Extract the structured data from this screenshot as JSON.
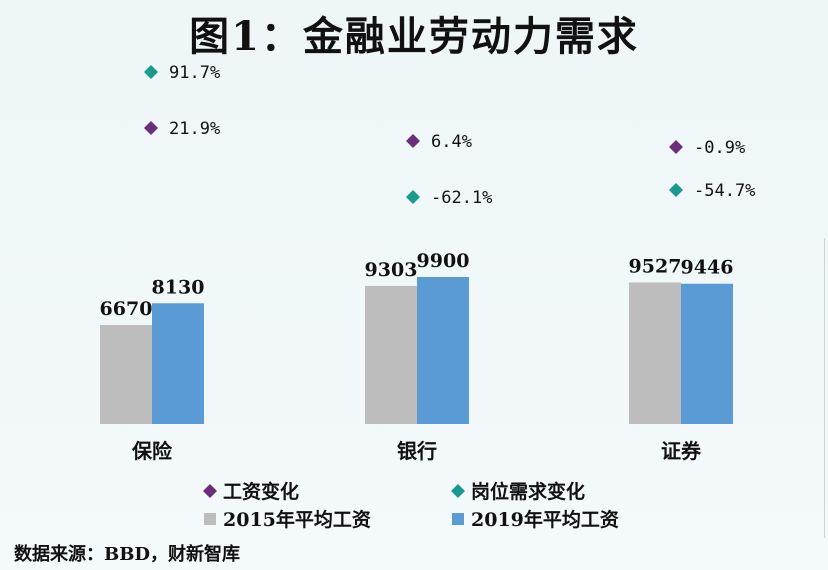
{
  "title": "图1：金融业劳动力需求",
  "source": "数据来源：BBD，财新智库",
  "colors": {
    "bar_2015": "#bdbdbd",
    "bar_2019": "#5b9bd5",
    "wage_change": "#6b2f7a",
    "job_change": "#1a9a8e"
  },
  "chart_data": {
    "type": "bar",
    "categories": [
      "保险",
      "银行",
      "证券"
    ],
    "series": [
      {
        "name": "2015年平均工资",
        "values": [
          6670,
          9303,
          9527
        ],
        "labels": [
          "6670",
          "9303",
          "9527"
        ]
      },
      {
        "name": "2019年平均工资",
        "values": [
          8130,
          9900,
          9446
        ],
        "labels": [
          "8130",
          "9900",
          "9446"
        ]
      }
    ],
    "markers": [
      {
        "name": "工资变化",
        "values": [
          21.9,
          6.4,
          -0.9
        ],
        "labels": [
          "21.9%",
          "6.4%",
          "-0.9%"
        ]
      },
      {
        "name": "岗位需求变化",
        "values": [
          91.7,
          -62.1,
          -54.7
        ],
        "labels": [
          "91.7%",
          "-62.1%",
          "-54.7%"
        ]
      }
    ],
    "legend": [
      {
        "label": "工资变化",
        "shape": "diamond"
      },
      {
        "label": "岗位需求变化",
        "shape": "diamond"
      },
      {
        "label": "2015年平均工资",
        "shape": "square"
      },
      {
        "label": "2019年平均工资",
        "shape": "square"
      }
    ],
    "legend_position": "bottom",
    "grid": false
  }
}
